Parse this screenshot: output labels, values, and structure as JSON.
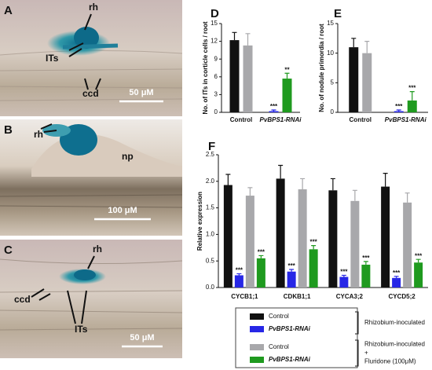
{
  "panels": [
    {
      "label": "A",
      "annotations": [
        "rh",
        "ITs",
        "ccd"
      ],
      "scale": "50 μM"
    },
    {
      "label": "B",
      "annotations": [
        "rh",
        "np"
      ],
      "scale": "100 μM"
    },
    {
      "label": "C",
      "annotations": [
        "rh",
        "ccd",
        "ITs"
      ],
      "scale": "50 μM"
    }
  ],
  "chart_data": [
    {
      "type": "bar",
      "panel": "D",
      "ylabel": "No. of ITs in corticle cells / root",
      "categories": [
        "Control",
        "PvBPS1-RNAi"
      ],
      "series": [
        {
          "colors": [
            "#111111",
            "#2727e6"
          ],
          "values": [
            12.2,
            0.2
          ],
          "errors": [
            1.3,
            0.2
          ],
          "significance": [
            null,
            "***"
          ]
        },
        {
          "colors": [
            "#a8a8ab",
            "#1f9a1f"
          ],
          "values": [
            11.3,
            5.7
          ],
          "errors": [
            2.0,
            0.9
          ],
          "significance": [
            null,
            "**"
          ]
        }
      ],
      "ylim": [
        0,
        15
      ],
      "yticks": [
        0,
        3,
        6,
        9,
        12,
        15
      ]
    },
    {
      "type": "bar",
      "panel": "E",
      "ylabel": "No. of nodule primordia / root",
      "categories": [
        "Control",
        "PvBPS1-RNAi"
      ],
      "series": [
        {
          "colors": [
            "#111111",
            "#2727e6"
          ],
          "values": [
            11,
            0.2
          ],
          "errors": [
            1.5,
            0.2
          ],
          "significance": [
            null,
            "***"
          ]
        },
        {
          "colors": [
            "#a8a8ab",
            "#1f9a1f"
          ],
          "values": [
            10,
            2
          ],
          "errors": [
            2.0,
            1.5
          ],
          "significance": [
            null,
            "***"
          ]
        }
      ],
      "ylim": [
        0,
        15
      ],
      "yticks": [
        0,
        5,
        10,
        15
      ]
    },
    {
      "type": "bar",
      "panel": "F",
      "ylabel": "Relative expression",
      "categories": [
        "CYCB1;1",
        "CDKB1;1",
        "CYCA3;2",
        "CYCD5;2"
      ],
      "series": [
        {
          "name": "Control",
          "color": "#111111",
          "values": [
            1.93,
            2.05,
            1.83,
            1.9
          ],
          "errors": [
            0.2,
            0.25,
            0.22,
            0.25
          ],
          "significance": [
            null,
            null,
            null,
            null
          ]
        },
        {
          "name": "PvBPS1-RNAi",
          "color": "#2727e6",
          "values": [
            0.23,
            0.3,
            0.2,
            0.18
          ],
          "errors": [
            0.03,
            0.04,
            0.03,
            0.03
          ],
          "significance": [
            "***",
            "***",
            "***",
            "***"
          ]
        },
        {
          "name": "Control",
          "color": "#a8a8ab",
          "values": [
            1.73,
            1.85,
            1.63,
            1.6
          ],
          "errors": [
            0.15,
            0.2,
            0.2,
            0.18
          ],
          "significance": [
            null,
            null,
            null,
            null
          ]
        },
        {
          "name": "PvBPS1-RNAi",
          "color": "#1f9a1f",
          "values": [
            0.55,
            0.72,
            0.43,
            0.47
          ],
          "errors": [
            0.05,
            0.07,
            0.06,
            0.06
          ],
          "significance": [
            "***",
            "***",
            "***",
            "***"
          ]
        }
      ],
      "legend_groups": [
        [
          "Rhizobium-inoculated"
        ],
        [
          "Rhizobium-inoculated",
          "+",
          "Fluridone (100μM)"
        ]
      ],
      "ylim": [
        0,
        2.5
      ],
      "yticks": [
        {
          "value": 0,
          "label": "0.0"
        },
        {
          "value": 0.5,
          "label": "0.5"
        },
        {
          "value": 1,
          "label": "1.0"
        },
        {
          "value": 1.5,
          "label": "1.5"
        },
        {
          "value": 2,
          "label": "2.0"
        },
        {
          "value": 2.5,
          "label": "2.5"
        }
      ]
    }
  ]
}
